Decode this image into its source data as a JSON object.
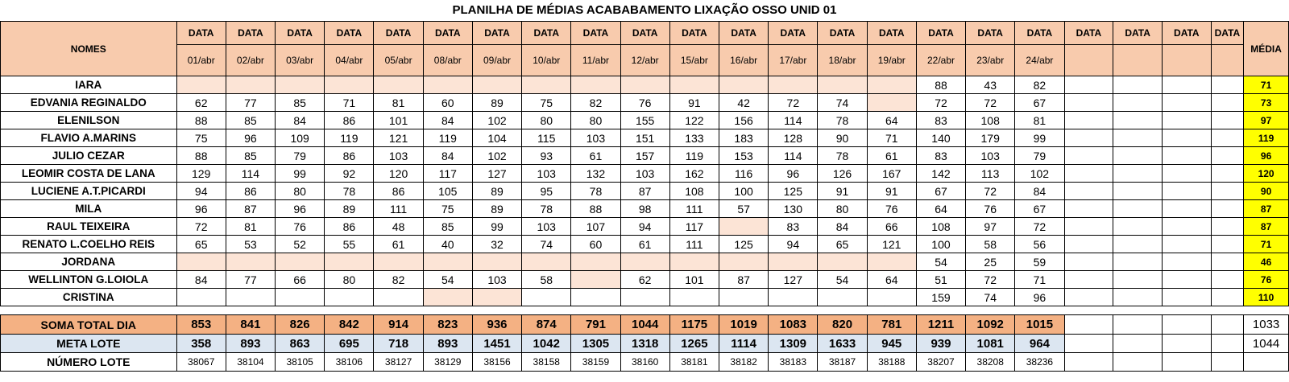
{
  "title": "PLANILHA DE MÉDIAS ACABABAMENTO LIXAÇÃO OSSO UNID 01",
  "header": {
    "names_label": "NOMES",
    "data_label": "DATA",
    "media_label": "MÉDIA",
    "dates": [
      "01/abr",
      "02/abr",
      "03/abr",
      "04/abr",
      "05/abr",
      "08/abr",
      "09/abr",
      "10/abr",
      "11/abr",
      "12/abr",
      "15/abr",
      "16/abr",
      "17/abr",
      "18/abr",
      "19/abr",
      "22/abr",
      "23/abr",
      "24/abr"
    ]
  },
  "rows": [
    {
      "name": "IARA",
      "values": [
        "",
        "",
        "",
        "",
        "",
        "",
        "",
        "",
        "",
        "",
        "",
        "",
        "",
        "",
        "",
        "88",
        "43",
        "82"
      ],
      "media": "71"
    },
    {
      "name": "EDVANIA REGINALDO",
      "values": [
        "62",
        "77",
        "85",
        "71",
        "81",
        "60",
        "89",
        "75",
        "82",
        "76",
        "91",
        "42",
        "72",
        "74",
        "",
        "72",
        "72",
        "67"
      ],
      "media": "73"
    },
    {
      "name": "ELENILSON",
      "values": [
        "88",
        "85",
        "84",
        "86",
        "101",
        "84",
        "102",
        "80",
        "80",
        "155",
        "122",
        "156",
        "114",
        "78",
        "64",
        "83",
        "108",
        "81"
      ],
      "media": "97"
    },
    {
      "name": "FLAVIO A.MARINS",
      "values": [
        "75",
        "96",
        "109",
        "119",
        "121",
        "119",
        "104",
        "115",
        "103",
        "151",
        "133",
        "183",
        "128",
        "90",
        "71",
        "140",
        "179",
        "99"
      ],
      "media": "119"
    },
    {
      "name": "JULIO CEZAR",
      "values": [
        "88",
        "85",
        "79",
        "86",
        "103",
        "84",
        "102",
        "93",
        "61",
        "157",
        "119",
        "153",
        "114",
        "78",
        "61",
        "83",
        "103",
        "79"
      ],
      "media": "96"
    },
    {
      "name": "LEOMIR COSTA DE LANA",
      "values": [
        "129",
        "114",
        "99",
        "92",
        "120",
        "117",
        "127",
        "103",
        "132",
        "103",
        "162",
        "116",
        "96",
        "126",
        "167",
        "142",
        "113",
        "102"
      ],
      "media": "120"
    },
    {
      "name": "LUCIENE A.T.PICARDI",
      "values": [
        "94",
        "86",
        "80",
        "78",
        "86",
        "105",
        "89",
        "95",
        "78",
        "87",
        "108",
        "100",
        "125",
        "91",
        "91",
        "67",
        "72",
        "84"
      ],
      "media": "90"
    },
    {
      "name": "MILA",
      "values": [
        "96",
        "87",
        "96",
        "89",
        "111",
        "75",
        "89",
        "78",
        "88",
        "98",
        "111",
        "57",
        "130",
        "80",
        "76",
        "64",
        "76",
        "67"
      ],
      "media": "87"
    },
    {
      "name": "RAUL TEIXEIRA",
      "values": [
        "72",
        "81",
        "76",
        "86",
        "48",
        "85",
        "99",
        "103",
        "107",
        "94",
        "117",
        "",
        "83",
        "84",
        "66",
        "108",
        "97",
        "72"
      ],
      "media": "87"
    },
    {
      "name": "RENATO L.COELHO REIS",
      "values": [
        "65",
        "53",
        "52",
        "55",
        "61",
        "40",
        "32",
        "74",
        "60",
        "61",
        "111",
        "125",
        "94",
        "65",
        "121",
        "100",
        "58",
        "56"
      ],
      "media": "71"
    },
    {
      "name": "JORDANA",
      "values": [
        "",
        "",
        "",
        "",
        "",
        "",
        "",
        "",
        "",
        "",
        "",
        "",
        "",
        "",
        "",
        "54",
        "25",
        "59"
      ],
      "media": "46"
    },
    {
      "name": "WELLINTON G.LOIOLA",
      "values": [
        "84",
        "77",
        "66",
        "80",
        "82",
        "54",
        "103",
        "58",
        "",
        "62",
        "101",
        "87",
        "127",
        "54",
        "64",
        "51",
        "72",
        "71"
      ],
      "media": "76"
    },
    {
      "name": "CRISTINA",
      "values": [
        "",
        "",
        "",
        "",
        "",
        "",
        "",
        "",
        "",
        "",
        "",
        "",
        "",
        "",
        "",
        "159",
        "74",
        "96"
      ],
      "media": "110"
    }
  ],
  "empty_highlight": [
    [
      0,
      1,
      2,
      3,
      4,
      5,
      6,
      7,
      8,
      9,
      10,
      11,
      12,
      13,
      14
    ],
    [
      14
    ],
    [],
    [],
    [],
    [],
    [],
    [],
    [
      11
    ],
    [],
    [
      0,
      1,
      2,
      3,
      4,
      5,
      6,
      7,
      8,
      9,
      10,
      11,
      12,
      13,
      14
    ],
    [
      8
    ],
    [
      5,
      6
    ]
  ],
  "soma": {
    "label": "SOMA TOTAL DIA",
    "values": [
      "853",
      "841",
      "826",
      "842",
      "914",
      "823",
      "936",
      "874",
      "791",
      "1044",
      "1175",
      "1019",
      "1083",
      "820",
      "781",
      "1211",
      "1092",
      "1015"
    ],
    "total": "1033"
  },
  "meta": {
    "label": "META LOTE",
    "values": [
      "358",
      "893",
      "863",
      "695",
      "718",
      "893",
      "1451",
      "1042",
      "1305",
      "1318",
      "1265",
      "1114",
      "1309",
      "1633",
      "945",
      "939",
      "1081",
      "964"
    ],
    "total": "1044"
  },
  "lote": {
    "label": "NÚMERO LOTE",
    "values": [
      "38067",
      "38104",
      "38105",
      "38106",
      "38127",
      "38129",
      "38156",
      "38158",
      "38159",
      "38160",
      "38181",
      "38182",
      "38183",
      "38187",
      "38188",
      "38207",
      "38208",
      "38236"
    ]
  },
  "colors": {
    "header": "#f8cbad",
    "empty": "#fce4d6",
    "media": "#ffff00",
    "soma": "#f4b183",
    "meta": "#dce6f1"
  }
}
